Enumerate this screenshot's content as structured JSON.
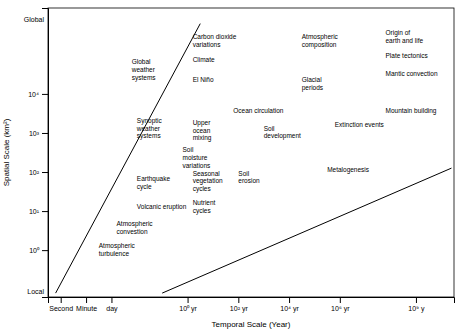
{
  "chart_data": {
    "type": "line",
    "xlabel": "Temporal Scale (Year)",
    "ylabel": "Spatial Scale (km²)",
    "xlim": [
      -5.5,
      10.5
    ],
    "ylim": [
      -1.2,
      6.2
    ],
    "xticks": [
      {
        "value": -5,
        "label": "Second"
      },
      {
        "value": -4,
        "label": "Minute"
      },
      {
        "value": -3,
        "label": "day"
      },
      {
        "value": 0,
        "label": "10⁰ yr"
      },
      {
        "value": 2,
        "label": "10² yr"
      },
      {
        "value": 4,
        "label": "10⁴ yr"
      },
      {
        "value": 6,
        "label": "10⁶ yr"
      },
      {
        "value": 9,
        "label": "10⁹ y"
      }
    ],
    "yticks": [
      {
        "value": 0,
        "label": "10⁰"
      },
      {
        "value": 1,
        "label": "10¹"
      },
      {
        "value": 2,
        "label": "10²"
      },
      {
        "value": 3,
        "label": "10³"
      },
      {
        "value": 4,
        "label": "10⁴"
      }
    ],
    "series": [
      {
        "x": [
          -5.2,
          0.5
        ],
        "values": [
          -1.1,
          5.8
        ],
        "color": "#000000"
      },
      {
        "x": [
          -1.0,
          10.4
        ],
        "values": [
          -1.1,
          2.1
        ],
        "color": "#000000"
      }
    ],
    "axis_end_labels": [
      {
        "text": "Global",
        "y": 5.9
      },
      {
        "text": "Local",
        "y": -1.05
      }
    ],
    "annotations": [
      {
        "text": "Global\nweather\nsystems",
        "x": -2.2,
        "y": 4.9
      },
      {
        "text": "Carbon dioxide\nvariations",
        "x": 0.2,
        "y": 5.55
      },
      {
        "text": "Climate",
        "x": 0.2,
        "y": 4.95
      },
      {
        "text": "El Niño",
        "x": 0.2,
        "y": 4.45
      },
      {
        "text": "Atmospheric\ncomposition",
        "x": 4.5,
        "y": 5.55
      },
      {
        "text": "Origin of\nearth and life",
        "x": 7.8,
        "y": 5.65
      },
      {
        "text": "Plate tectonics",
        "x": 7.8,
        "y": 5.05
      },
      {
        "text": "Mantic convection",
        "x": 7.8,
        "y": 4.6
      },
      {
        "text": "Glacial\nperiods",
        "x": 4.5,
        "y": 4.45
      },
      {
        "text": "Ocean circulation",
        "x": 1.8,
        "y": 3.65
      },
      {
        "text": "Mountain building",
        "x": 7.8,
        "y": 3.65
      },
      {
        "text": "Extinction events",
        "x": 5.8,
        "y": 3.3
      },
      {
        "text": "Synoptic\nweather\nsystems",
        "x": -2.0,
        "y": 3.4
      },
      {
        "text": "Upper\nocean\nmixing",
        "x": 0.2,
        "y": 3.35
      },
      {
        "text": "Soil\ndevelopment",
        "x": 3.0,
        "y": 3.2
      },
      {
        "text": "Soil\nmoisture\nvariations",
        "x": -0.2,
        "y": 2.65
      },
      {
        "text": "Seasonal\nvegetation\ncycles",
        "x": 0.2,
        "y": 2.05
      },
      {
        "text": "Soil\nerosion",
        "x": 2.0,
        "y": 2.05
      },
      {
        "text": "Metalogenesis",
        "x": 5.5,
        "y": 2.15
      },
      {
        "text": "Earthquake\ncycle",
        "x": -2.0,
        "y": 1.9
      },
      {
        "text": "Volcanic eruption",
        "x": -2.0,
        "y": 1.2
      },
      {
        "text": "Nutrient\ncycles",
        "x": 0.2,
        "y": 1.3
      },
      {
        "text": "Atmospheric\nconvestion",
        "x": -2.8,
        "y": 0.75
      },
      {
        "text": "Atmospheric\nturbulence",
        "x": -3.5,
        "y": 0.2
      }
    ]
  }
}
